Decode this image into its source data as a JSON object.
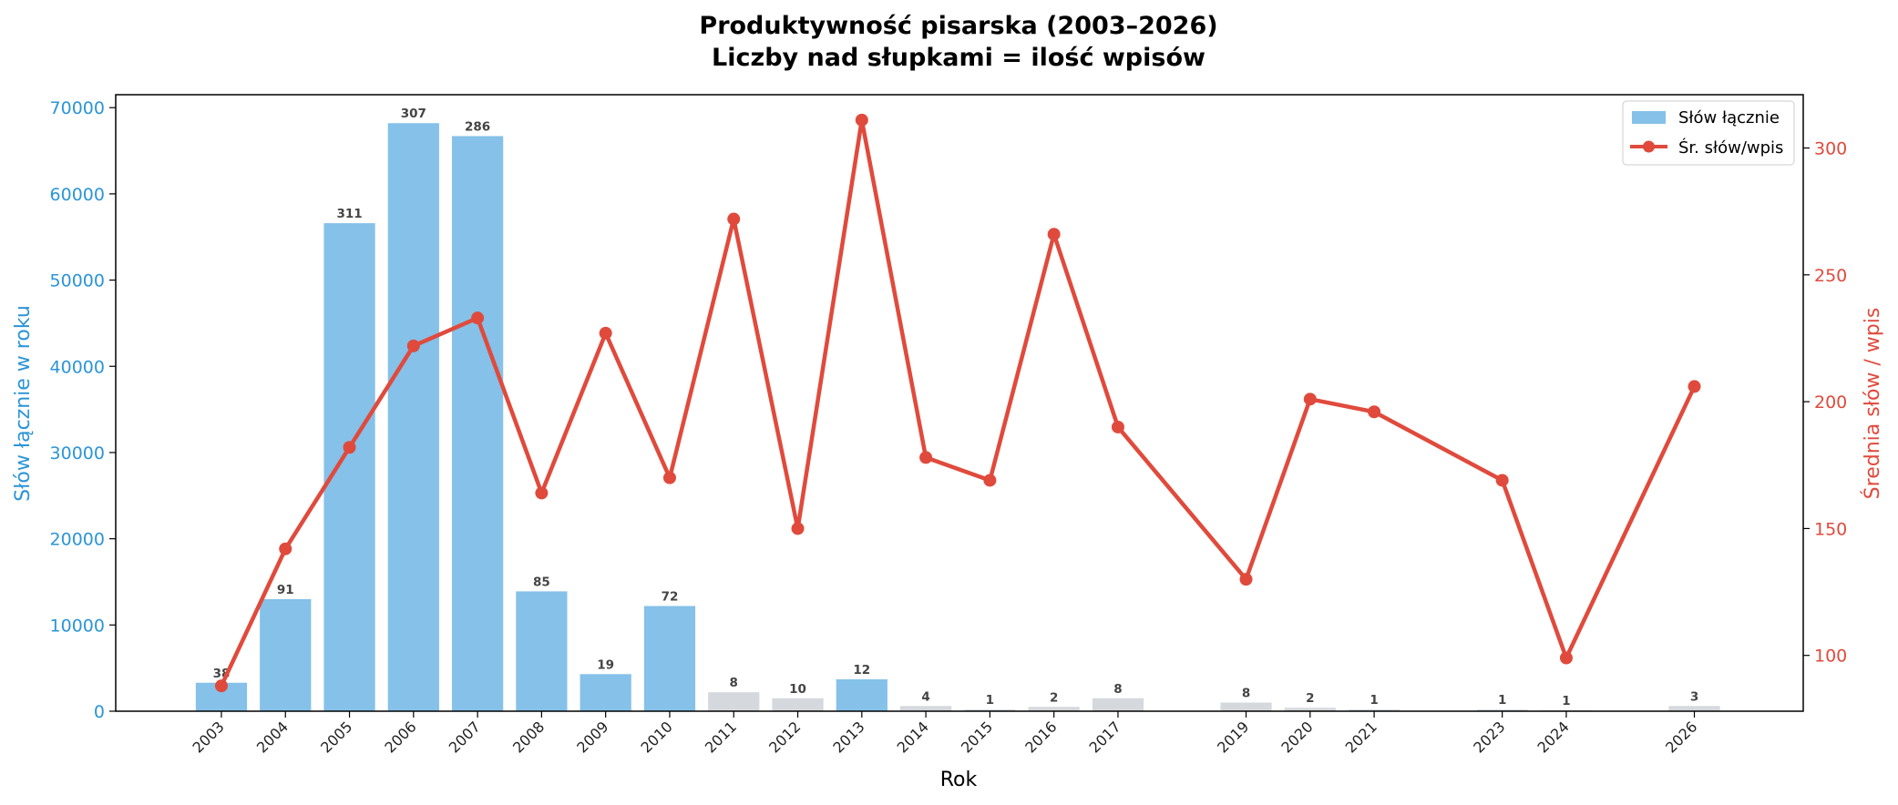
{
  "chart_data": {
    "type": "bar+line",
    "title": "Produktywność pisarska (2003–2026)",
    "subtitle": "Liczby nad słupkami = ilość wpisów",
    "xlabel": "Rok",
    "ylabel_left": "Słów łącznie w roku",
    "ylabel_right": "Średnia słów / wpis",
    "ylim_left": [
      0,
      71500
    ],
    "ylim_right": [
      78,
      321
    ],
    "yticks_left": [
      0,
      10000,
      20000,
      30000,
      40000,
      50000,
      60000,
      70000
    ],
    "yticks_right": [
      100,
      150,
      200,
      250,
      300
    ],
    "grid": false,
    "legend_position": "top-right",
    "colors": {
      "bar_main": "#85c1e9",
      "bar_minor": "#d5d8dc",
      "line": "#e04a3c",
      "left_axis": "#2b95d6",
      "right_axis": "#e04a3c"
    },
    "years": [
      "2003",
      "2004",
      "2005",
      "2006",
      "2007",
      "2008",
      "2009",
      "2010",
      "2011",
      "2012",
      "2013",
      "2014",
      "2015",
      "2016",
      "2017",
      "2019",
      "2020",
      "2021",
      "2023",
      "2024",
      "2026"
    ],
    "series": [
      {
        "name": "Słów łącznie",
        "type": "bar",
        "values": [
          3300,
          13000,
          56600,
          68200,
          66700,
          13900,
          4300,
          12200,
          2200,
          1500,
          3700,
          600,
          200,
          500,
          1500,
          1000,
          400,
          200,
          200,
          100,
          600
        ],
        "highlight": [
          true,
          true,
          true,
          true,
          true,
          true,
          true,
          true,
          false,
          false,
          true,
          false,
          false,
          false,
          false,
          false,
          false,
          false,
          false,
          false,
          false
        ]
      },
      {
        "name": "Śr. słów/wpis",
        "type": "line",
        "values": [
          88,
          142,
          182,
          222,
          233,
          164,
          227,
          170,
          272,
          150,
          311,
          178,
          169,
          266,
          190,
          130,
          201,
          196,
          169,
          99,
          206
        ]
      }
    ],
    "bar_labels": [
      "38",
      "91",
      "311",
      "307",
      "286",
      "85",
      "19",
      "72",
      "8",
      "10",
      "12",
      "4",
      "1",
      "2",
      "8",
      "8",
      "2",
      "1",
      "1",
      "1",
      "3"
    ]
  }
}
